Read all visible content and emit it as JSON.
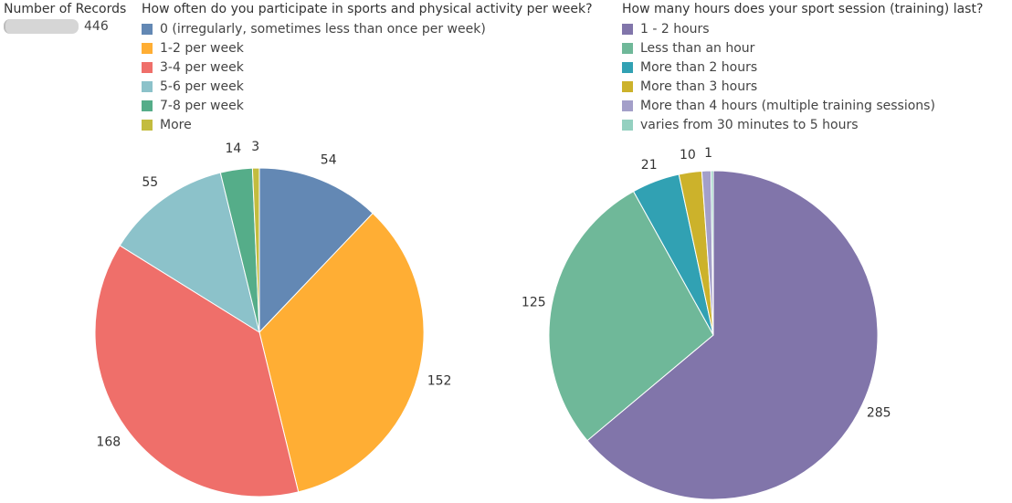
{
  "records": {
    "title": "Number of Records",
    "value": "446"
  },
  "chart_data": [
    {
      "type": "pie",
      "title": "How often do you participate in sports and physical activity per week?",
      "categories": [
        "0 (irregularly, sometimes less than once per week)",
        "1-2 per week",
        "3-4 per week",
        "5-6 per week",
        "7-8 per week",
        "More"
      ],
      "values": [
        54,
        152,
        168,
        55,
        14,
        3
      ],
      "colors": [
        "#6388b4",
        "#ffae34",
        "#ef6f6a",
        "#8cc2ca",
        "#55ad89",
        "#c3bc3f"
      ],
      "legend": "top"
    },
    {
      "type": "pie",
      "title": "How many hours does your sport session (training) last?",
      "categories": [
        "1 - 2 hours",
        "Less than an hour",
        "More than 2 hours",
        "More than 3 hours",
        "More than 4 hours (multiple training sessions)",
        "varies from 30 minutes to 5 hours"
      ],
      "values": [
        285,
        125,
        21,
        10,
        4,
        1
      ],
      "colors": [
        "#8175aa",
        "#6fb899",
        "#31a1b3",
        "#ccb22b",
        "#a39fc9",
        "#94d0c0"
      ],
      "legend": "top",
      "label_visible": [
        true,
        true,
        true,
        true,
        false,
        true
      ]
    }
  ]
}
